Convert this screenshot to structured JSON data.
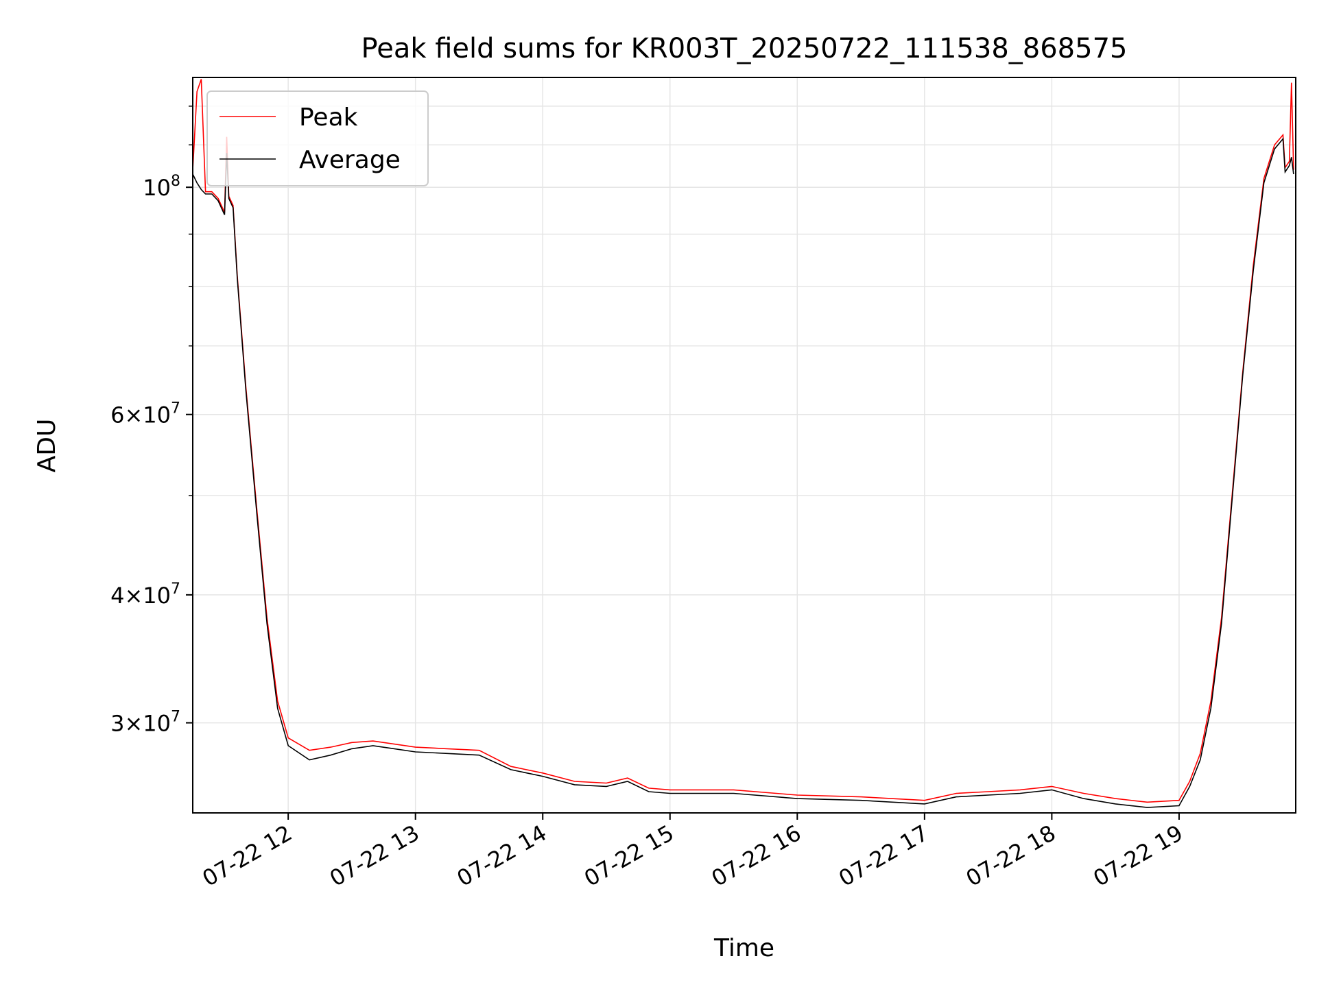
{
  "chart_data": {
    "type": "line",
    "title": "Peak field sums for KR003T_20250722_111538_868575",
    "xlabel": "Time",
    "ylabel": "ADU",
    "x_range": [
      "2025-07-22 11:15",
      "2025-07-22 19:55"
    ],
    "y_range": [
      24500000,
      128000000
    ],
    "y_scale": "log",
    "grid": true,
    "legend_position": "upper left",
    "x_ticks": [
      {
        "value": "2025-07-22 12:00",
        "label": "07-22 12"
      },
      {
        "value": "2025-07-22 13:00",
        "label": "07-22 13"
      },
      {
        "value": "2025-07-22 14:00",
        "label": "07-22 14"
      },
      {
        "value": "2025-07-22 15:00",
        "label": "07-22 15"
      },
      {
        "value": "2025-07-22 16:00",
        "label": "07-22 16"
      },
      {
        "value": "2025-07-22 17:00",
        "label": "07-22 17"
      },
      {
        "value": "2025-07-22 18:00",
        "label": "07-22 18"
      },
      {
        "value": "2025-07-22 19:00",
        "label": "07-22 19"
      }
    ],
    "y_ticks": [
      {
        "value": 30000000,
        "base": "3×10",
        "exp": "7"
      },
      {
        "value": 40000000,
        "base": "4×10",
        "exp": "7"
      },
      {
        "value": 60000000,
        "base": "6×10",
        "exp": "7"
      },
      {
        "value": 100000000,
        "base": "10",
        "exp": "8"
      }
    ],
    "series": [
      {
        "name": "Peak",
        "color": "#ff0000",
        "points": [
          [
            "2025-07-22 11:15",
            104000000
          ],
          [
            "2025-07-22 11:17",
            124000000
          ],
          [
            "2025-07-22 11:19",
            127500000
          ],
          [
            "2025-07-22 11:21",
            99000000
          ],
          [
            "2025-07-22 11:24",
            99000000
          ],
          [
            "2025-07-22 11:27",
            97500000
          ],
          [
            "2025-07-22 11:30",
            94500000
          ],
          [
            "2025-07-22 11:31",
            112000000
          ],
          [
            "2025-07-22 11:32",
            98000000
          ],
          [
            "2025-07-22 11:34",
            96000000
          ],
          [
            "2025-07-22 11:36",
            82000000
          ],
          [
            "2025-07-22 11:40",
            64000000
          ],
          [
            "2025-07-22 11:45",
            49000000
          ],
          [
            "2025-07-22 11:50",
            38000000
          ],
          [
            "2025-07-22 11:55",
            31500000
          ],
          [
            "2025-07-22 12:00",
            29000000
          ],
          [
            "2025-07-22 12:10",
            28200000
          ],
          [
            "2025-07-22 12:20",
            28400000
          ],
          [
            "2025-07-22 12:30",
            28700000
          ],
          [
            "2025-07-22 12:40",
            28800000
          ],
          [
            "2025-07-22 12:50",
            28600000
          ],
          [
            "2025-07-22 13:00",
            28400000
          ],
          [
            "2025-07-22 13:15",
            28300000
          ],
          [
            "2025-07-22 13:30",
            28200000
          ],
          [
            "2025-07-22 13:45",
            27200000
          ],
          [
            "2025-07-22 14:00",
            26800000
          ],
          [
            "2025-07-22 14:15",
            26300000
          ],
          [
            "2025-07-22 14:30",
            26200000
          ],
          [
            "2025-07-22 14:40",
            26500000
          ],
          [
            "2025-07-22 14:50",
            25900000
          ],
          [
            "2025-07-22 15:00",
            25800000
          ],
          [
            "2025-07-22 15:30",
            25800000
          ],
          [
            "2025-07-22 16:00",
            25500000
          ],
          [
            "2025-07-22 16:30",
            25400000
          ],
          [
            "2025-07-22 17:00",
            25200000
          ],
          [
            "2025-07-22 17:15",
            25600000
          ],
          [
            "2025-07-22 17:30",
            25700000
          ],
          [
            "2025-07-22 17:45",
            25800000
          ],
          [
            "2025-07-22 18:00",
            26000000
          ],
          [
            "2025-07-22 18:15",
            25600000
          ],
          [
            "2025-07-22 18:30",
            25300000
          ],
          [
            "2025-07-22 18:45",
            25100000
          ],
          [
            "2025-07-22 19:00",
            25200000
          ],
          [
            "2025-07-22 19:05",
            26300000
          ],
          [
            "2025-07-22 19:10",
            28000000
          ],
          [
            "2025-07-22 19:15",
            31500000
          ],
          [
            "2025-07-22 19:20",
            38000000
          ],
          [
            "2025-07-22 19:25",
            50000000
          ],
          [
            "2025-07-22 19:30",
            66000000
          ],
          [
            "2025-07-22 19:35",
            84000000
          ],
          [
            "2025-07-22 19:40",
            102000000
          ],
          [
            "2025-07-22 19:45",
            110000000
          ],
          [
            "2025-07-22 19:49",
            112500000
          ],
          [
            "2025-07-22 19:50",
            104500000
          ],
          [
            "2025-07-22 19:52",
            106000000
          ],
          [
            "2025-07-22 19:53",
            126500000
          ],
          [
            "2025-07-22 19:54",
            104000000
          ]
        ]
      },
      {
        "name": "Average",
        "color": "#000000",
        "points": [
          [
            "2025-07-22 11:15",
            103000000
          ],
          [
            "2025-07-22 11:17",
            101000000
          ],
          [
            "2025-07-22 11:19",
            99500000
          ],
          [
            "2025-07-22 11:21",
            98500000
          ],
          [
            "2025-07-22 11:24",
            98500000
          ],
          [
            "2025-07-22 11:27",
            97000000
          ],
          [
            "2025-07-22 11:30",
            94000000
          ],
          [
            "2025-07-22 11:31",
            108000000
          ],
          [
            "2025-07-22 11:32",
            97500000
          ],
          [
            "2025-07-22 11:34",
            95500000
          ],
          [
            "2025-07-22 11:36",
            81500000
          ],
          [
            "2025-07-22 11:40",
            63500000
          ],
          [
            "2025-07-22 11:45",
            48500000
          ],
          [
            "2025-07-22 11:50",
            37500000
          ],
          [
            "2025-07-22 11:55",
            31000000
          ],
          [
            "2025-07-22 12:00",
            28500000
          ],
          [
            "2025-07-22 12:10",
            27600000
          ],
          [
            "2025-07-22 12:20",
            27900000
          ],
          [
            "2025-07-22 12:30",
            28300000
          ],
          [
            "2025-07-22 12:40",
            28500000
          ],
          [
            "2025-07-22 12:50",
            28300000
          ],
          [
            "2025-07-22 13:00",
            28100000
          ],
          [
            "2025-07-22 13:15",
            28000000
          ],
          [
            "2025-07-22 13:30",
            27900000
          ],
          [
            "2025-07-22 13:45",
            27000000
          ],
          [
            "2025-07-22 14:00",
            26600000
          ],
          [
            "2025-07-22 14:15",
            26100000
          ],
          [
            "2025-07-22 14:30",
            26000000
          ],
          [
            "2025-07-22 14:40",
            26300000
          ],
          [
            "2025-07-22 14:50",
            25700000
          ],
          [
            "2025-07-22 15:00",
            25600000
          ],
          [
            "2025-07-22 15:30",
            25600000
          ],
          [
            "2025-07-22 16:00",
            25300000
          ],
          [
            "2025-07-22 16:30",
            25200000
          ],
          [
            "2025-07-22 17:00",
            25000000
          ],
          [
            "2025-07-22 17:15",
            25400000
          ],
          [
            "2025-07-22 17:30",
            25500000
          ],
          [
            "2025-07-22 17:45",
            25600000
          ],
          [
            "2025-07-22 18:00",
            25800000
          ],
          [
            "2025-07-22 18:15",
            25300000
          ],
          [
            "2025-07-22 18:30",
            25000000
          ],
          [
            "2025-07-22 18:45",
            24800000
          ],
          [
            "2025-07-22 19:00",
            24900000
          ],
          [
            "2025-07-22 19:05",
            26000000
          ],
          [
            "2025-07-22 19:10",
            27600000
          ],
          [
            "2025-07-22 19:15",
            31000000
          ],
          [
            "2025-07-22 19:20",
            37500000
          ],
          [
            "2025-07-22 19:25",
            49500000
          ],
          [
            "2025-07-22 19:30",
            65500000
          ],
          [
            "2025-07-22 19:35",
            83000000
          ],
          [
            "2025-07-22 19:40",
            101000000
          ],
          [
            "2025-07-22 19:45",
            109000000
          ],
          [
            "2025-07-22 19:49",
            111500000
          ],
          [
            "2025-07-22 19:50",
            103500000
          ],
          [
            "2025-07-22 19:52",
            105000000
          ],
          [
            "2025-07-22 19:53",
            107000000
          ],
          [
            "2025-07-22 19:54",
            103000000
          ]
        ]
      }
    ]
  }
}
